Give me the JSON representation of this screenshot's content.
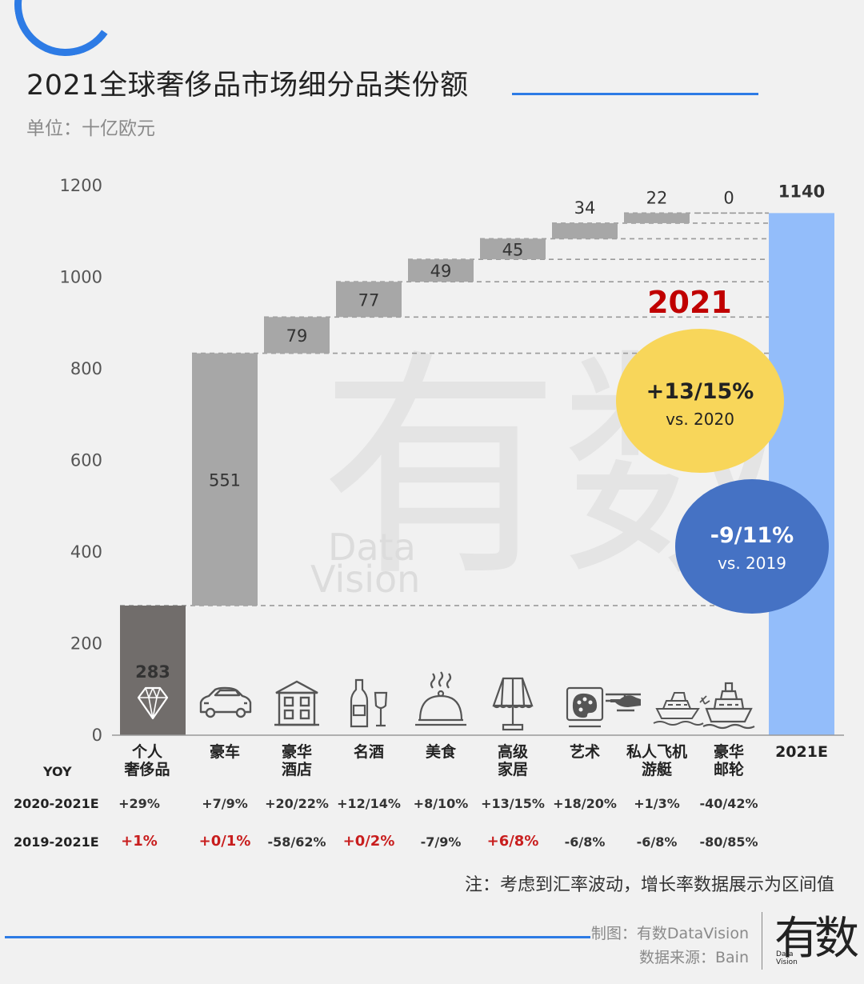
{
  "header": {
    "title": "2021全球奢侈品市场细分品类份额",
    "unit": "单位：十亿欧元"
  },
  "chart_data": {
    "type": "waterfall",
    "title": "2021全球奢侈品市场细分品类份额",
    "ylabel": "单位：十亿欧元",
    "ylim": [
      0,
      1200
    ],
    "yticks": [
      0,
      200,
      400,
      600,
      800,
      1000,
      1200
    ],
    "categories": [
      "个人奢侈品",
      "豪车",
      "豪华酒店",
      "名酒",
      "美食",
      "高级家居",
      "艺术",
      "私人飞机游艇",
      "豪华邮轮",
      "2021E"
    ],
    "category_lines": [
      [
        "个人",
        "奢侈品"
      ],
      [
        "豪车"
      ],
      [
        "豪华",
        "酒店"
      ],
      [
        "名酒"
      ],
      [
        "美食"
      ],
      [
        "高级",
        "家居"
      ],
      [
        "艺术"
      ],
      [
        "私人飞机",
        "游艇"
      ],
      [
        "豪华",
        "邮轮"
      ],
      [
        "2021E"
      ]
    ],
    "values": [
      283,
      551,
      79,
      77,
      49,
      45,
      34,
      22,
      0,
      1140
    ],
    "value_labels": [
      "283",
      "551",
      "79",
      "77",
      "49",
      "45",
      "34",
      "22",
      "0",
      "1140"
    ],
    "icons": [
      "diamond-icon",
      "car-icon",
      "hotel-icon",
      "wine-icon",
      "food-cloche-icon",
      "lamp-icon",
      "art-palette-icon",
      "helicopter-yacht-icon",
      "cruise-ship-icon",
      ""
    ],
    "colors": {
      "first": "#716d6b",
      "step": "#a7a7a7",
      "total": "#93bdfa",
      "bubble_2020": "#f8d65a",
      "bubble_2019": "#4572c4",
      "highlight": "#c00000"
    }
  },
  "callouts": {
    "year": "2021",
    "vs2020_value": "+13/15%",
    "vs2020_label": "vs. 2020",
    "vs2019_value": "-9/11%",
    "vs2019_label": "vs. 2019"
  },
  "table": {
    "header": "YOY",
    "rows": [
      {
        "label": "2020-2021E",
        "values": [
          "+29%",
          "+7/9%",
          "+20/22%",
          "+12/14%",
          "+8/10%",
          "+13/15%",
          "+18/20%",
          "+1/3%",
          "-40/42%"
        ],
        "highlight": [
          false,
          false,
          false,
          false,
          false,
          false,
          false,
          false,
          false
        ]
      },
      {
        "label": "2019-2021E",
        "values": [
          "+1%",
          "+0/1%",
          "-58/62%",
          "+0/2%",
          "-7/9%",
          "+6/8%",
          "-6/8%",
          "-6/8%",
          "-80/85%"
        ],
        "highlight": [
          true,
          true,
          false,
          true,
          false,
          true,
          false,
          false,
          false
        ]
      }
    ]
  },
  "note": "注：考虑到汇率波动，增长率数据展示为区间值",
  "footer": {
    "credit": "制图：有数DataVision",
    "source": "数据来源：Bain",
    "logo_text": "有数",
    "logo_sub": "Data Vision",
    "watermark_main": "有数",
    "watermark_sub1": "Data",
    "watermark_sub2": "Vision"
  }
}
